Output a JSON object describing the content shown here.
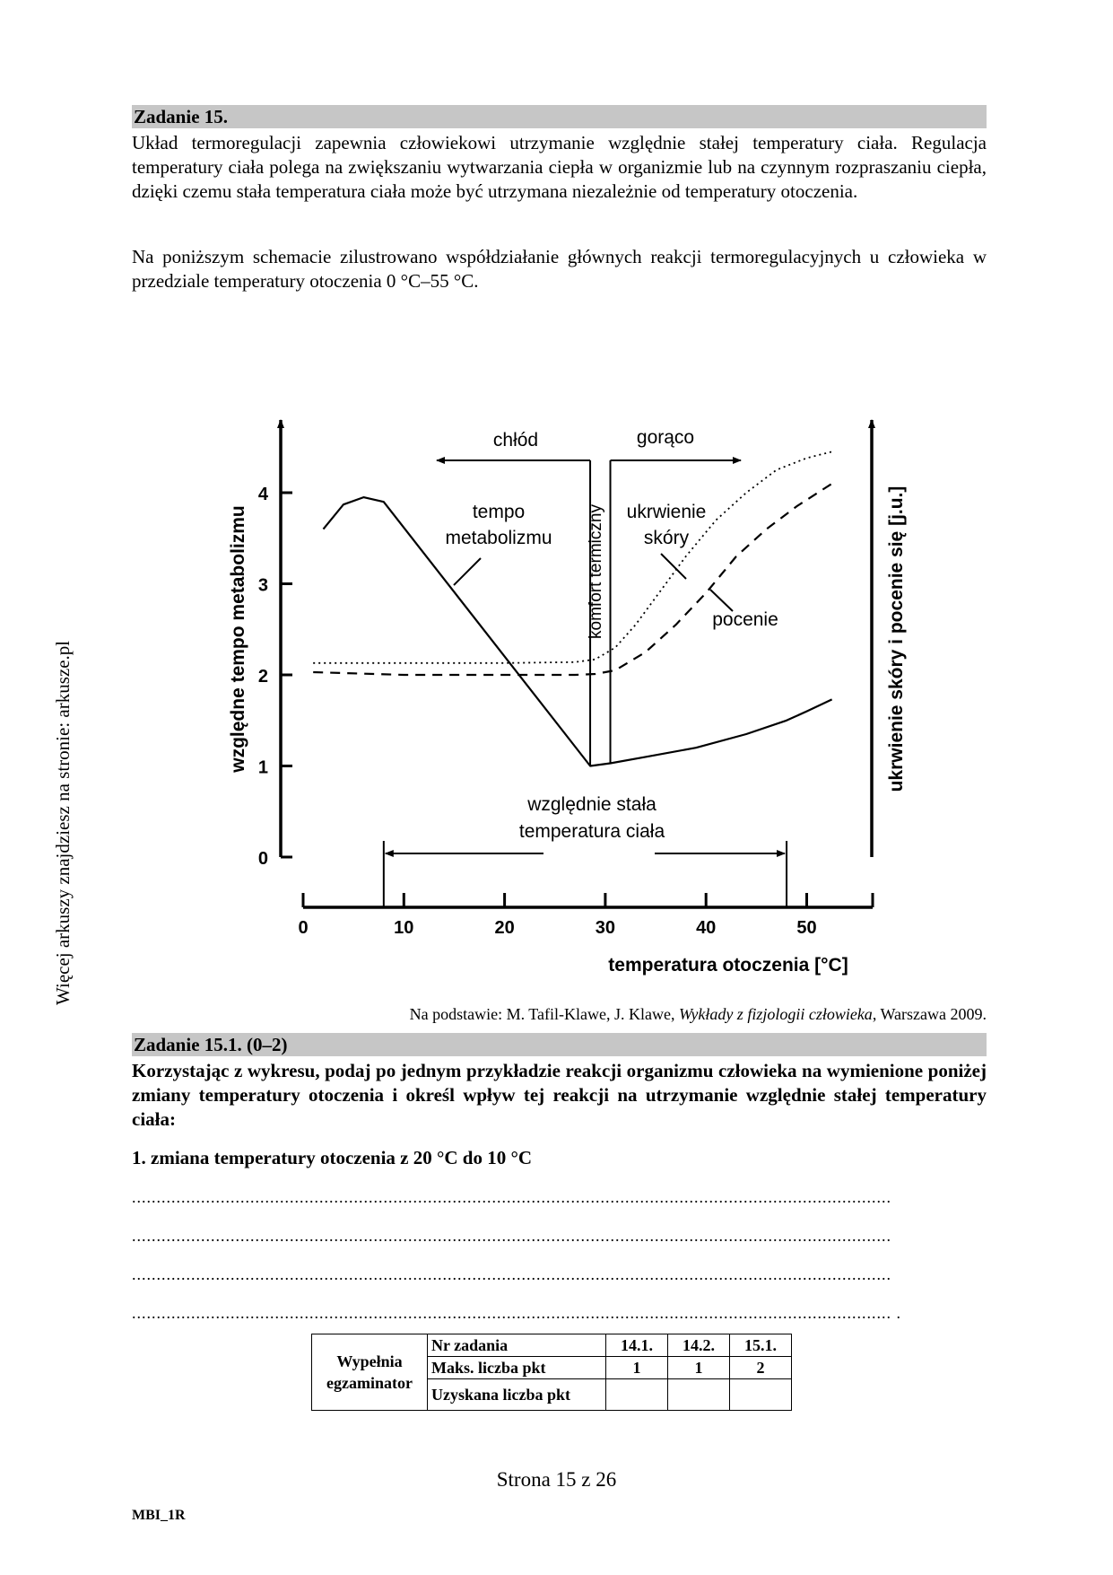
{
  "side_note": "Więcej arkuszy znajdziesz na stronie: arkusze.pl",
  "task15": {
    "header": "Zadanie 15.",
    "para1": "Układ termoregulacji zapewnia człowiekowi utrzymanie względnie stałej temperatury ciała. Regulacja temperatury ciała polega na zwiększaniu wytwarzania ciepła w organizmie lub na czynnym rozpraszaniu ciepła, dzięki czemu stała temperatura ciała może być utrzymana niezależnie od temperatury otoczenia.",
    "para2": "Na poniższym schemacie zilustrowano współdziałanie głównych reakcji termoregulacyjnych u człowieka w przedziale temperatury otoczenia 0 °C–55 °C."
  },
  "chart_data": {
    "type": "line",
    "xlabel": "temperatura otoczenia [°C]",
    "ylabel_left": "względne tempo metabolizmu",
    "ylabel_right": "ukrwienie skóry i pocenie się [j.u.]",
    "x_ticks": [
      "0",
      "10",
      "20",
      "30",
      "40",
      "50"
    ],
    "y_ticks": [
      "0",
      "1",
      "2",
      "3",
      "4"
    ],
    "xlim": [
      0,
      56
    ],
    "ylim": [
      0,
      4.5
    ],
    "series": [
      {
        "name": "tempo metabolizmu",
        "style": "solid",
        "x": [
          2,
          4,
          6,
          8,
          28.5,
          30.5,
          34,
          39,
          44,
          48,
          50,
          52.5
        ],
        "y": [
          3.6,
          3.87,
          3.95,
          3.9,
          1.0,
          1.03,
          1.1,
          1.2,
          1.35,
          1.5,
          1.6,
          1.73
        ]
      },
      {
        "name": "ukrwienie skóry",
        "style": "dotted",
        "x": [
          1,
          10,
          20,
          27,
          29,
          31,
          33,
          36,
          38,
          41,
          44,
          47,
          50,
          52.5
        ],
        "y": [
          2.13,
          2.13,
          2.13,
          2.14,
          2.17,
          2.3,
          2.55,
          3.0,
          3.3,
          3.7,
          4.0,
          4.25,
          4.38,
          4.45
        ]
      },
      {
        "name": "pocenie",
        "style": "dashed",
        "x": [
          1,
          10,
          20,
          27,
          29,
          31,
          34,
          37,
          40,
          43,
          46,
          49,
          52.5
        ],
        "y": [
          2.03,
          2.0,
          2.0,
          2.0,
          2.01,
          2.05,
          2.25,
          2.55,
          2.9,
          3.3,
          3.6,
          3.85,
          4.1
        ]
      }
    ],
    "annotations": {
      "cold": "chłód",
      "hot": "gorąco",
      "comfort": "komfort termiczny",
      "metab_l1": "tempo",
      "metab_l2": "metabolizmu",
      "skin_l1": "ukrwienie",
      "skin_l2": "skóry",
      "sweat": "pocenie",
      "const_l1": "względnie stała",
      "const_l2": "temperatura ciała"
    },
    "const_range": [
      8,
      48
    ]
  },
  "source": {
    "prefix": "Na podstawie: M. Tafil-Klawe, J. Klawe, ",
    "title": "Wykłady z fizjologii człowieka",
    "suffix": ", Warszawa 2009."
  },
  "task15_1": {
    "header": "Zadanie 15.1. (0–2)",
    "instruction": "Korzystając z wykresu, podaj po jednym przykładzie reakcji organizmu człowieka na wymienione poniżej zmiany temperatury otoczenia i określ wpływ tej reakcji na utrzymanie względnie stałej temperatury ciała:",
    "item1": "1. zmiana temperatury otoczenia z 20 °C do 10 °C"
  },
  "dot_lines": [
    "..........................................................................................................................................................",
    "..........................................................................................................................................................",
    "..........................................................................................................................................................",
    ".......................................................................................................................................................... ."
  ],
  "score_table": {
    "examiner": "Wypełnia egzaminator",
    "row_labels": [
      "Nr zadania",
      "Maks. liczba pkt",
      "Uzyskana liczba pkt"
    ],
    "tasks": [
      "14.1.",
      "14.2.",
      "15.1."
    ],
    "max_points": [
      "1",
      "1",
      "2"
    ]
  },
  "footer": {
    "page": "Strona 15 z 26",
    "code": "MBI_1R"
  }
}
